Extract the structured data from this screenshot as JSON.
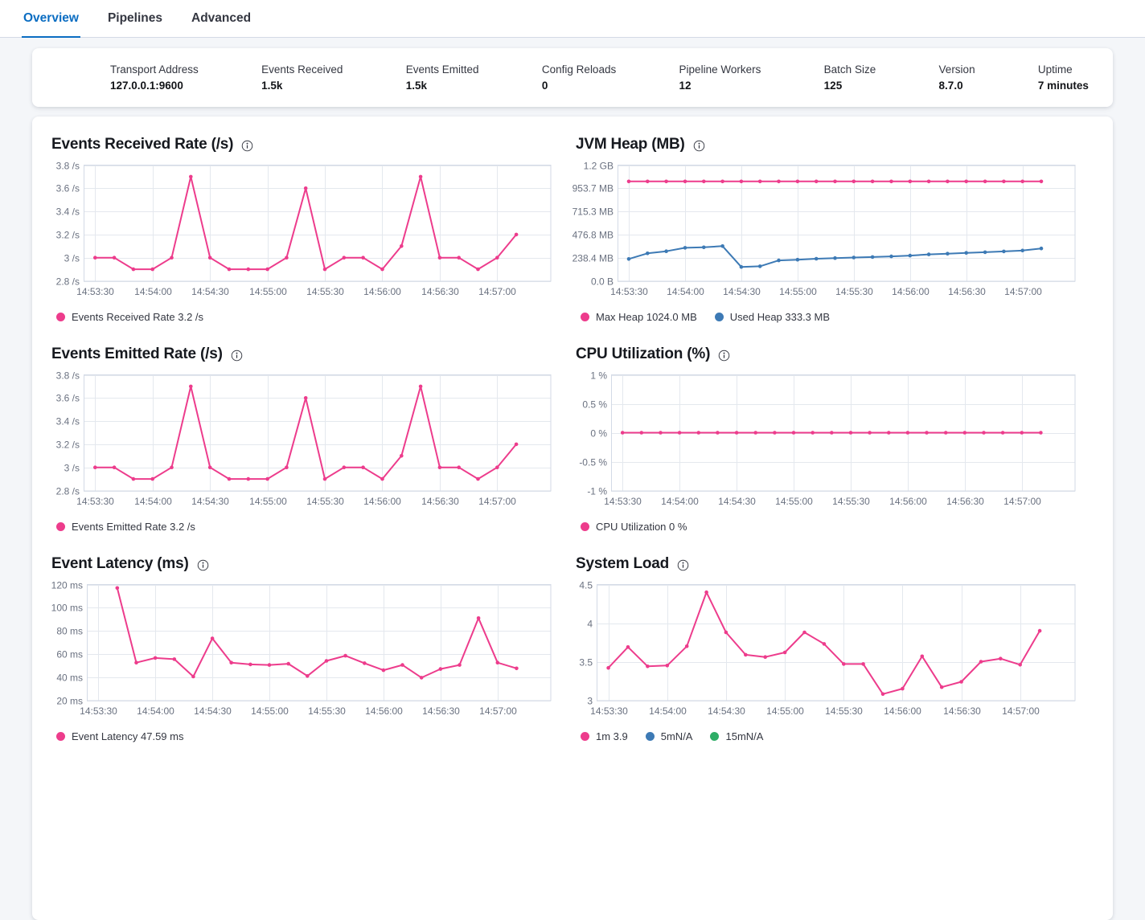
{
  "tabs": {
    "items": [
      {
        "label": "Overview",
        "active": true
      },
      {
        "label": "Pipelines",
        "active": false
      },
      {
        "label": "Advanced",
        "active": false
      }
    ]
  },
  "summary": {
    "items": [
      {
        "label": "Transport Address",
        "value": "127.0.0.1:9600"
      },
      {
        "label": "Events Received",
        "value": "1.5k"
      },
      {
        "label": "Events Emitted",
        "value": "1.5k"
      },
      {
        "label": "Config Reloads",
        "value": "0"
      },
      {
        "label": "Pipeline Workers",
        "value": "12"
      },
      {
        "label": "Batch Size",
        "value": "125"
      },
      {
        "label": "Version",
        "value": "8.7.0"
      },
      {
        "label": "Uptime",
        "value": "7 minutes"
      }
    ]
  },
  "colors": {
    "pink": "#ed3c8c",
    "blue": "#3d7ab5",
    "green": "#2ead66",
    "gridline": "#e4e8ee",
    "plot_border": "#d3dae6",
    "tab_active": "#0b6dc2"
  },
  "chart_data": [
    {
      "type": "line",
      "title": "Events Received Rate (/s)",
      "x_start_label": "14:53:30",
      "x_interval_seconds": 10,
      "x_domain_seconds": [
        -6,
        238
      ],
      "x_tick_seconds": [
        0,
        30,
        60,
        90,
        120,
        150,
        180,
        210
      ],
      "x_tick_labels": [
        "14:53:30",
        "14:54:00",
        "14:54:30",
        "14:55:00",
        "14:55:30",
        "14:56:00",
        "14:56:30",
        "14:57:00"
      ],
      "ylim": [
        2.8,
        3.8
      ],
      "yticks": [
        {
          "value": 3.8,
          "label": "3.8 /s"
        },
        {
          "value": 3.6,
          "label": "3.6 /s"
        },
        {
          "value": 3.4,
          "label": "3.4 /s"
        },
        {
          "value": 3.2,
          "label": "3.2 /s"
        },
        {
          "value": 3.0,
          "label": "3 /s"
        },
        {
          "value": 2.8,
          "label": "2.8 /s"
        }
      ],
      "margin_left": 40,
      "series": [
        {
          "name": "Events Received Rate",
          "color": "#ed3c8c",
          "start_offset_seconds": 0,
          "values": [
            3,
            3,
            2.9,
            2.9,
            3,
            3.7,
            3,
            2.9,
            2.9,
            2.9,
            3,
            3.6,
            2.9,
            3,
            3,
            2.9,
            3.1,
            3.7,
            3,
            3,
            2.9,
            3,
            3.2
          ]
        }
      ],
      "legend": [
        {
          "label": "Events Received Rate 3.2 /s",
          "color": "#ed3c8c"
        }
      ]
    },
    {
      "type": "line",
      "title": "JVM Heap (MB)",
      "x_start_label": "14:53:30",
      "x_interval_seconds": 10,
      "x_domain_seconds": [
        -6,
        238
      ],
      "x_tick_seconds": [
        0,
        30,
        60,
        90,
        120,
        150,
        180,
        210
      ],
      "x_tick_labels": [
        "14:53:30",
        "14:54:00",
        "14:54:30",
        "14:55:00",
        "14:55:30",
        "14:56:00",
        "14:56:30",
        "14:57:00"
      ],
      "ylim": [
        0,
        1192.1
      ],
      "yticks": [
        {
          "value": 1192.1,
          "label": "1.2 GB"
        },
        {
          "value": 953.7,
          "label": "953.7 MB"
        },
        {
          "value": 715.3,
          "label": "715.3 MB"
        },
        {
          "value": 476.8,
          "label": "476.8 MB"
        },
        {
          "value": 238.4,
          "label": "238.4 MB"
        },
        {
          "value": 0,
          "label": "0.0 B"
        }
      ],
      "margin_left": 52,
      "series": [
        {
          "name": "Max Heap",
          "color": "#ed3c8c",
          "start_offset_seconds": 0,
          "values": [
            1024,
            1024,
            1024,
            1024,
            1024,
            1024,
            1024,
            1024,
            1024,
            1024,
            1024,
            1024,
            1024,
            1024,
            1024,
            1024,
            1024,
            1024,
            1024,
            1024,
            1024,
            1024,
            1024
          ]
        },
        {
          "name": "Used Heap",
          "color": "#3d7ab5",
          "start_offset_seconds": 0,
          "values": [
            225,
            283,
            305,
            340,
            345,
            358,
            143,
            150,
            210,
            218,
            228,
            234,
            240,
            245,
            252,
            260,
            272,
            280,
            288,
            295,
            303,
            312,
            333.3
          ]
        }
      ],
      "legend": [
        {
          "label": "Max Heap 1024.0 MB",
          "color": "#ed3c8c"
        },
        {
          "label": "Used Heap 333.3 MB",
          "color": "#3d7ab5"
        }
      ]
    },
    {
      "type": "line",
      "title": "Events Emitted Rate (/s)",
      "x_start_label": "14:53:30",
      "x_interval_seconds": 10,
      "x_domain_seconds": [
        -6,
        238
      ],
      "x_tick_seconds": [
        0,
        30,
        60,
        90,
        120,
        150,
        180,
        210
      ],
      "x_tick_labels": [
        "14:53:30",
        "14:54:00",
        "14:54:30",
        "14:55:00",
        "14:55:30",
        "14:56:00",
        "14:56:30",
        "14:57:00"
      ],
      "ylim": [
        2.8,
        3.8
      ],
      "yticks": [
        {
          "value": 3.8,
          "label": "3.8 /s"
        },
        {
          "value": 3.6,
          "label": "3.6 /s"
        },
        {
          "value": 3.4,
          "label": "3.4 /s"
        },
        {
          "value": 3.2,
          "label": "3.2 /s"
        },
        {
          "value": 3.0,
          "label": "3 /s"
        },
        {
          "value": 2.8,
          "label": "2.8 /s"
        }
      ],
      "margin_left": 40,
      "series": [
        {
          "name": "Events Emitted Rate",
          "color": "#ed3c8c",
          "start_offset_seconds": 0,
          "values": [
            3,
            3,
            2.9,
            2.9,
            3,
            3.7,
            3,
            2.9,
            2.9,
            2.9,
            3,
            3.6,
            2.9,
            3,
            3,
            2.9,
            3.1,
            3.7,
            3,
            3,
            2.9,
            3,
            3.2
          ]
        }
      ],
      "legend": [
        {
          "label": "Events Emitted Rate 3.2 /s",
          "color": "#ed3c8c"
        }
      ]
    },
    {
      "type": "line",
      "title": "CPU Utilization (%)",
      "x_start_label": "14:53:30",
      "x_interval_seconds": 10,
      "x_domain_seconds": [
        -6,
        238
      ],
      "x_tick_seconds": [
        0,
        30,
        60,
        90,
        120,
        150,
        180,
        210
      ],
      "x_tick_labels": [
        "14:53:30",
        "14:54:00",
        "14:54:30",
        "14:55:00",
        "14:55:30",
        "14:56:00",
        "14:56:30",
        "14:57:00"
      ],
      "ylim": [
        -1,
        1
      ],
      "yticks": [
        {
          "value": 1,
          "label": "1 %"
        },
        {
          "value": 0.5,
          "label": "0.5 %"
        },
        {
          "value": 0,
          "label": "0 %"
        },
        {
          "value": -0.5,
          "label": "-0.5 %"
        },
        {
          "value": -1,
          "label": "-1 %"
        }
      ],
      "margin_left": 44,
      "series": [
        {
          "name": "CPU Utilization",
          "color": "#ed3c8c",
          "start_offset_seconds": 0,
          "values": [
            0,
            0,
            0,
            0,
            0,
            0,
            0,
            0,
            0,
            0,
            0,
            0,
            0,
            0,
            0,
            0,
            0,
            0,
            0,
            0,
            0,
            0,
            0
          ]
        }
      ],
      "legend": [
        {
          "label": "CPU Utilization 0 %",
          "color": "#ed3c8c"
        }
      ]
    },
    {
      "type": "line",
      "title": "Event Latency (ms)",
      "x_start_label": "14:53:30",
      "x_interval_seconds": 10,
      "x_domain_seconds": [
        -6,
        238
      ],
      "x_tick_seconds": [
        0,
        30,
        60,
        90,
        120,
        150,
        180,
        210
      ],
      "x_tick_labels": [
        "14:53:30",
        "14:54:00",
        "14:54:30",
        "14:55:00",
        "14:55:30",
        "14:56:00",
        "14:56:30",
        "14:57:00"
      ],
      "ylim": [
        20,
        120
      ],
      "yticks": [
        {
          "value": 120,
          "label": "120 ms"
        },
        {
          "value": 100,
          "label": "100 ms"
        },
        {
          "value": 80,
          "label": "80 ms"
        },
        {
          "value": 60,
          "label": "60 ms"
        },
        {
          "value": 40,
          "label": "40 ms"
        },
        {
          "value": 20,
          "label": "20 ms"
        }
      ],
      "margin_left": 44,
      "series": [
        {
          "name": "Event Latency",
          "color": "#ed3c8c",
          "start_offset_seconds": 10,
          "values": [
            117,
            52.5,
            56.5,
            55.5,
            40.5,
            73.5,
            52.5,
            51,
            50.5,
            51.5,
            41,
            54,
            58.5,
            52,
            46,
            50.5,
            39.5,
            47,
            50.5,
            91,
            52.5,
            47.59
          ]
        }
      ],
      "legend": [
        {
          "label": "Event Latency 47.59 ms",
          "color": "#ed3c8c"
        }
      ]
    },
    {
      "type": "line",
      "title": "System Load",
      "x_start_label": "14:53:30",
      "x_interval_seconds": 10,
      "x_domain_seconds": [
        -6,
        238
      ],
      "x_tick_seconds": [
        0,
        30,
        60,
        90,
        120,
        150,
        180,
        210
      ],
      "x_tick_labels": [
        "14:53:30",
        "14:54:00",
        "14:54:30",
        "14:55:00",
        "14:55:30",
        "14:56:00",
        "14:56:30",
        "14:57:00"
      ],
      "ylim": [
        3,
        4.5
      ],
      "yticks": [
        {
          "value": 4.5,
          "label": "4.5"
        },
        {
          "value": 4,
          "label": "4"
        },
        {
          "value": 3.5,
          "label": "3.5"
        },
        {
          "value": 3,
          "label": "3"
        }
      ],
      "margin_left": 26,
      "series": [
        {
          "name": "1m",
          "color": "#ed3c8c",
          "start_offset_seconds": 0,
          "values": [
            3.42,
            3.69,
            3.44,
            3.45,
            3.7,
            4.4,
            3.88,
            3.59,
            3.56,
            3.62,
            3.88,
            3.73,
            3.47,
            3.47,
            3.08,
            3.15,
            3.57,
            3.17,
            3.24,
            3.5,
            3.54,
            3.46,
            3.9
          ]
        }
      ],
      "legend": [
        {
          "label": "1m 3.9",
          "color": "#ed3c8c"
        },
        {
          "label": "5mN/A",
          "color": "#3d7ab5"
        },
        {
          "label": "15mN/A",
          "color": "#2ead66"
        }
      ]
    }
  ]
}
